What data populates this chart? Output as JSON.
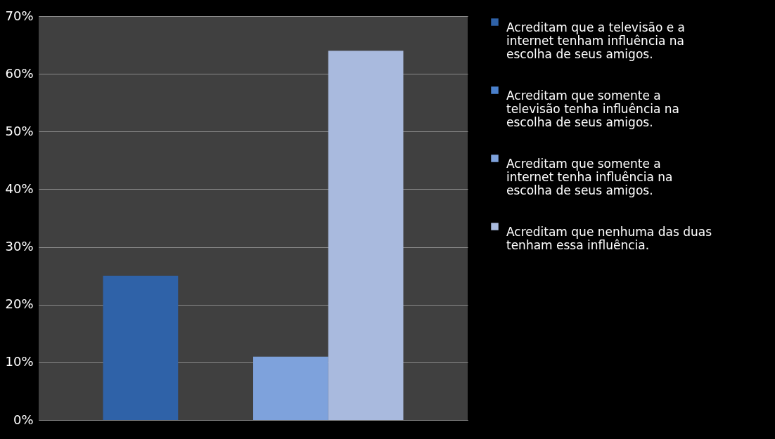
{
  "chart_data": {
    "type": "bar",
    "categories": [
      null
    ],
    "series": [
      {
        "name": "Acreditam que a televisão e a internet tenham influência na escolha de seus amigos.",
        "color": "#2f62a8",
        "values": [
          25
        ]
      },
      {
        "name": "Acreditam que somente a televisão tenha influência na escolha de seus amigos.",
        "color": "#4a80cc",
        "values": [
          0
        ]
      },
      {
        "name": "Acreditam que somente a internet tenha influência na escolha de seus amigos.",
        "color": "#7ea2dc",
        "values": [
          11
        ]
      },
      {
        "name": "Acreditam que nenhuma das duas tenham essa influência.",
        "color": "#a9bade",
        "values": [
          64
        ]
      }
    ],
    "ylim": [
      0,
      70
    ],
    "yticks": [
      {
        "value": 0,
        "label": "0%"
      },
      {
        "value": 10,
        "label": "10%"
      },
      {
        "value": 20,
        "label": "20%"
      },
      {
        "value": 30,
        "label": "30%"
      },
      {
        "value": 40,
        "label": "40%"
      },
      {
        "value": 50,
        "label": "50%"
      },
      {
        "value": 60,
        "label": "60%"
      },
      {
        "value": 70,
        "label": "70%"
      }
    ],
    "grid": "y",
    "legend": "right",
    "tick_labels": "y"
  }
}
